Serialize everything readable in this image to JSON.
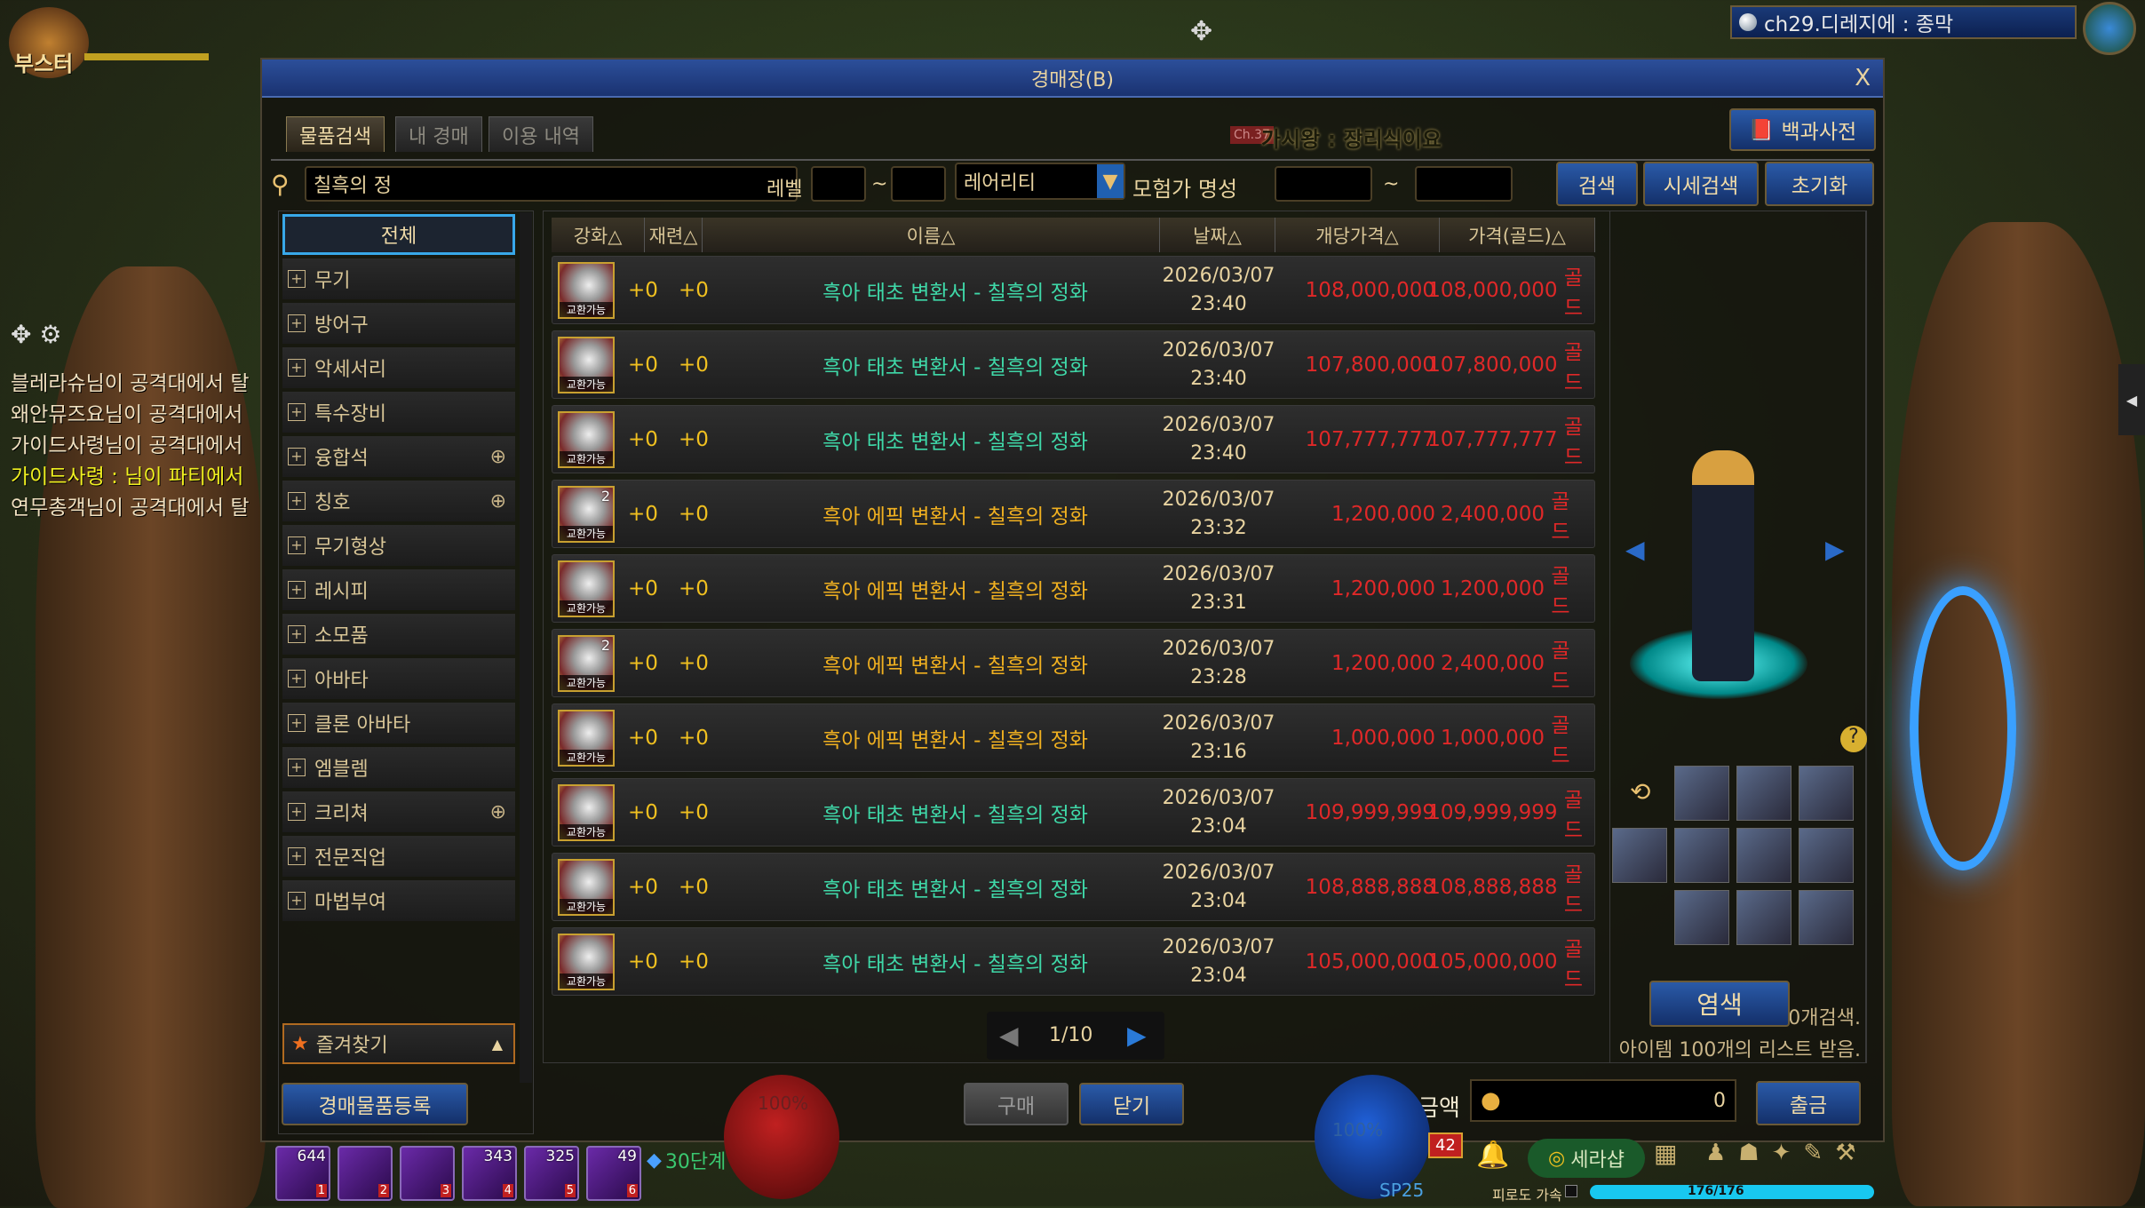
{
  "game": {
    "logo": "부스터",
    "channel": "ch29.디레지에 : 종막"
  },
  "chat": [
    "블레라슈님이 공격대에서 탈",
    "왜안뮤즈요님이 공격대에서",
    "가이드사령님이 공격대에서",
    "가이드사령 : 님이 파티에서",
    "연무총객님이 공격대에서 탈"
  ],
  "window": {
    "title": "경매장(B)",
    "close": "X",
    "tabs": [
      "물품검색",
      "내 경매",
      "이용 내역"
    ],
    "encyclopedia": "백과사전",
    "bg_notice_1": "가시왕 : 장리식이요",
    "bg_notice_badge": "Ch.37"
  },
  "search": {
    "query": "칠흑의 정",
    "level_label": "레벨",
    "tilde": "~",
    "rarity": "레어리티",
    "fame_label": "모험가 명성",
    "search_btn": "검색",
    "price_search_btn": "시세검색",
    "reset_btn": "초기화"
  },
  "categories": [
    "전체",
    "무기",
    "방어구",
    "악세서리",
    "특수장비",
    "융합석",
    "칭호",
    "무기형상",
    "레시피",
    "소모품",
    "아바타",
    "클론 아바타",
    "엠블렘",
    "크리쳐",
    "전문직업",
    "마법부여"
  ],
  "categories_with_zoom": [
    "융합석",
    "칭호",
    "크리쳐"
  ],
  "favorites": "즐겨찾기",
  "columns": [
    "강화△",
    "재련△",
    "이름△",
    "날짜△",
    "개당가격△",
    "가격(골드)△"
  ],
  "rows": [
    {
      "enh": "+0",
      "ref": "+0",
      "name": "흑아 태초 변환서 - 칠흑의 정화",
      "tier": "태초",
      "date": "2026/03/07",
      "time": "23:40",
      "unit": "108,000,000",
      "total": "108,000,000",
      "qty": "",
      "trade": "교환가능"
    },
    {
      "enh": "+0",
      "ref": "+0",
      "name": "흑아 태초 변환서 - 칠흑의 정화",
      "tier": "태초",
      "date": "2026/03/07",
      "time": "23:40",
      "unit": "107,800,000",
      "total": "107,800,000",
      "qty": "",
      "trade": "교환가능"
    },
    {
      "enh": "+0",
      "ref": "+0",
      "name": "흑아 태초 변환서 - 칠흑의 정화",
      "tier": "태초",
      "date": "2026/03/07",
      "time": "23:40",
      "unit": "107,777,777",
      "total": "107,777,777",
      "qty": "",
      "trade": "교환가능"
    },
    {
      "enh": "+0",
      "ref": "+0",
      "name": "흑아 에픽 변환서 - 칠흑의 정화",
      "tier": "에픽",
      "date": "2026/03/07",
      "time": "23:32",
      "unit": "1,200,000",
      "total": "2,400,000",
      "qty": "2",
      "trade": "교환가능"
    },
    {
      "enh": "+0",
      "ref": "+0",
      "name": "흑아 에픽 변환서 - 칠흑의 정화",
      "tier": "에픽",
      "date": "2026/03/07",
      "time": "23:31",
      "unit": "1,200,000",
      "total": "1,200,000",
      "qty": "",
      "trade": "교환가능"
    },
    {
      "enh": "+0",
      "ref": "+0",
      "name": "흑아 에픽 변환서 - 칠흑의 정화",
      "tier": "에픽",
      "date": "2026/03/07",
      "time": "23:28",
      "unit": "1,200,000",
      "total": "2,400,000",
      "qty": "2",
      "trade": "교환가능"
    },
    {
      "enh": "+0",
      "ref": "+0",
      "name": "흑아 에픽 변환서 - 칠흑의 정화",
      "tier": "에픽",
      "date": "2026/03/07",
      "time": "23:16",
      "unit": "1,000,000",
      "total": "1,000,000",
      "qty": "",
      "trade": "교환가능"
    },
    {
      "enh": "+0",
      "ref": "+0",
      "name": "흑아 태초 변환서 - 칠흑의 정화",
      "tier": "태초",
      "date": "2026/03/07",
      "time": "23:04",
      "unit": "109,999,999",
      "total": "109,999,999",
      "qty": "",
      "trade": "교환가능"
    },
    {
      "enh": "+0",
      "ref": "+0",
      "name": "흑아 태초 변환서 - 칠흑의 정화",
      "tier": "태초",
      "date": "2026/03/07",
      "time": "23:04",
      "unit": "108,888,888",
      "total": "108,888,888",
      "qty": "",
      "trade": "교환가능"
    },
    {
      "enh": "+0",
      "ref": "+0",
      "name": "흑아 태초 변환서 - 칠흑의 정화",
      "tier": "태초",
      "date": "2026/03/07",
      "time": "23:04",
      "unit": "105,000,000",
      "total": "105,000,000",
      "qty": "",
      "trade": "교환가능"
    }
  ],
  "gold_unit": "골드",
  "tier_colors": {
    "태초": "#3fd8a8",
    "에픽": "#f0b020"
  },
  "price_color": "#e02828",
  "pagination": {
    "page": "1/10"
  },
  "result_info": [
    "100개검색.",
    "아이템 100개의 리스트 받음."
  ],
  "preview": {
    "dye_btn": "염색",
    "help": "?"
  },
  "bottom": {
    "register_btn": "경매물품등록",
    "buy_btn": "구매",
    "close_btn": "닫기",
    "money_label": "소지 금액",
    "money_value": "0",
    "withdraw_btn": "출금"
  },
  "hud": {
    "quickslots": [
      {
        "count": "644",
        "key": "1"
      },
      {
        "count": "",
        "key": "2"
      },
      {
        "count": "",
        "key": "3"
      },
      {
        "count": "343",
        "key": "4"
      },
      {
        "count": "325",
        "key": "5"
      },
      {
        "count": "49",
        "key": "6"
      }
    ],
    "stage": "30단계",
    "hp": "100%",
    "mp": "100%",
    "sp": "SP25",
    "level_badge": "42",
    "cera_shop": "세라샵",
    "fatigue_label": "피로도 가속",
    "fatigue": "176/176",
    "fatigue_fraction": 1.0
  }
}
